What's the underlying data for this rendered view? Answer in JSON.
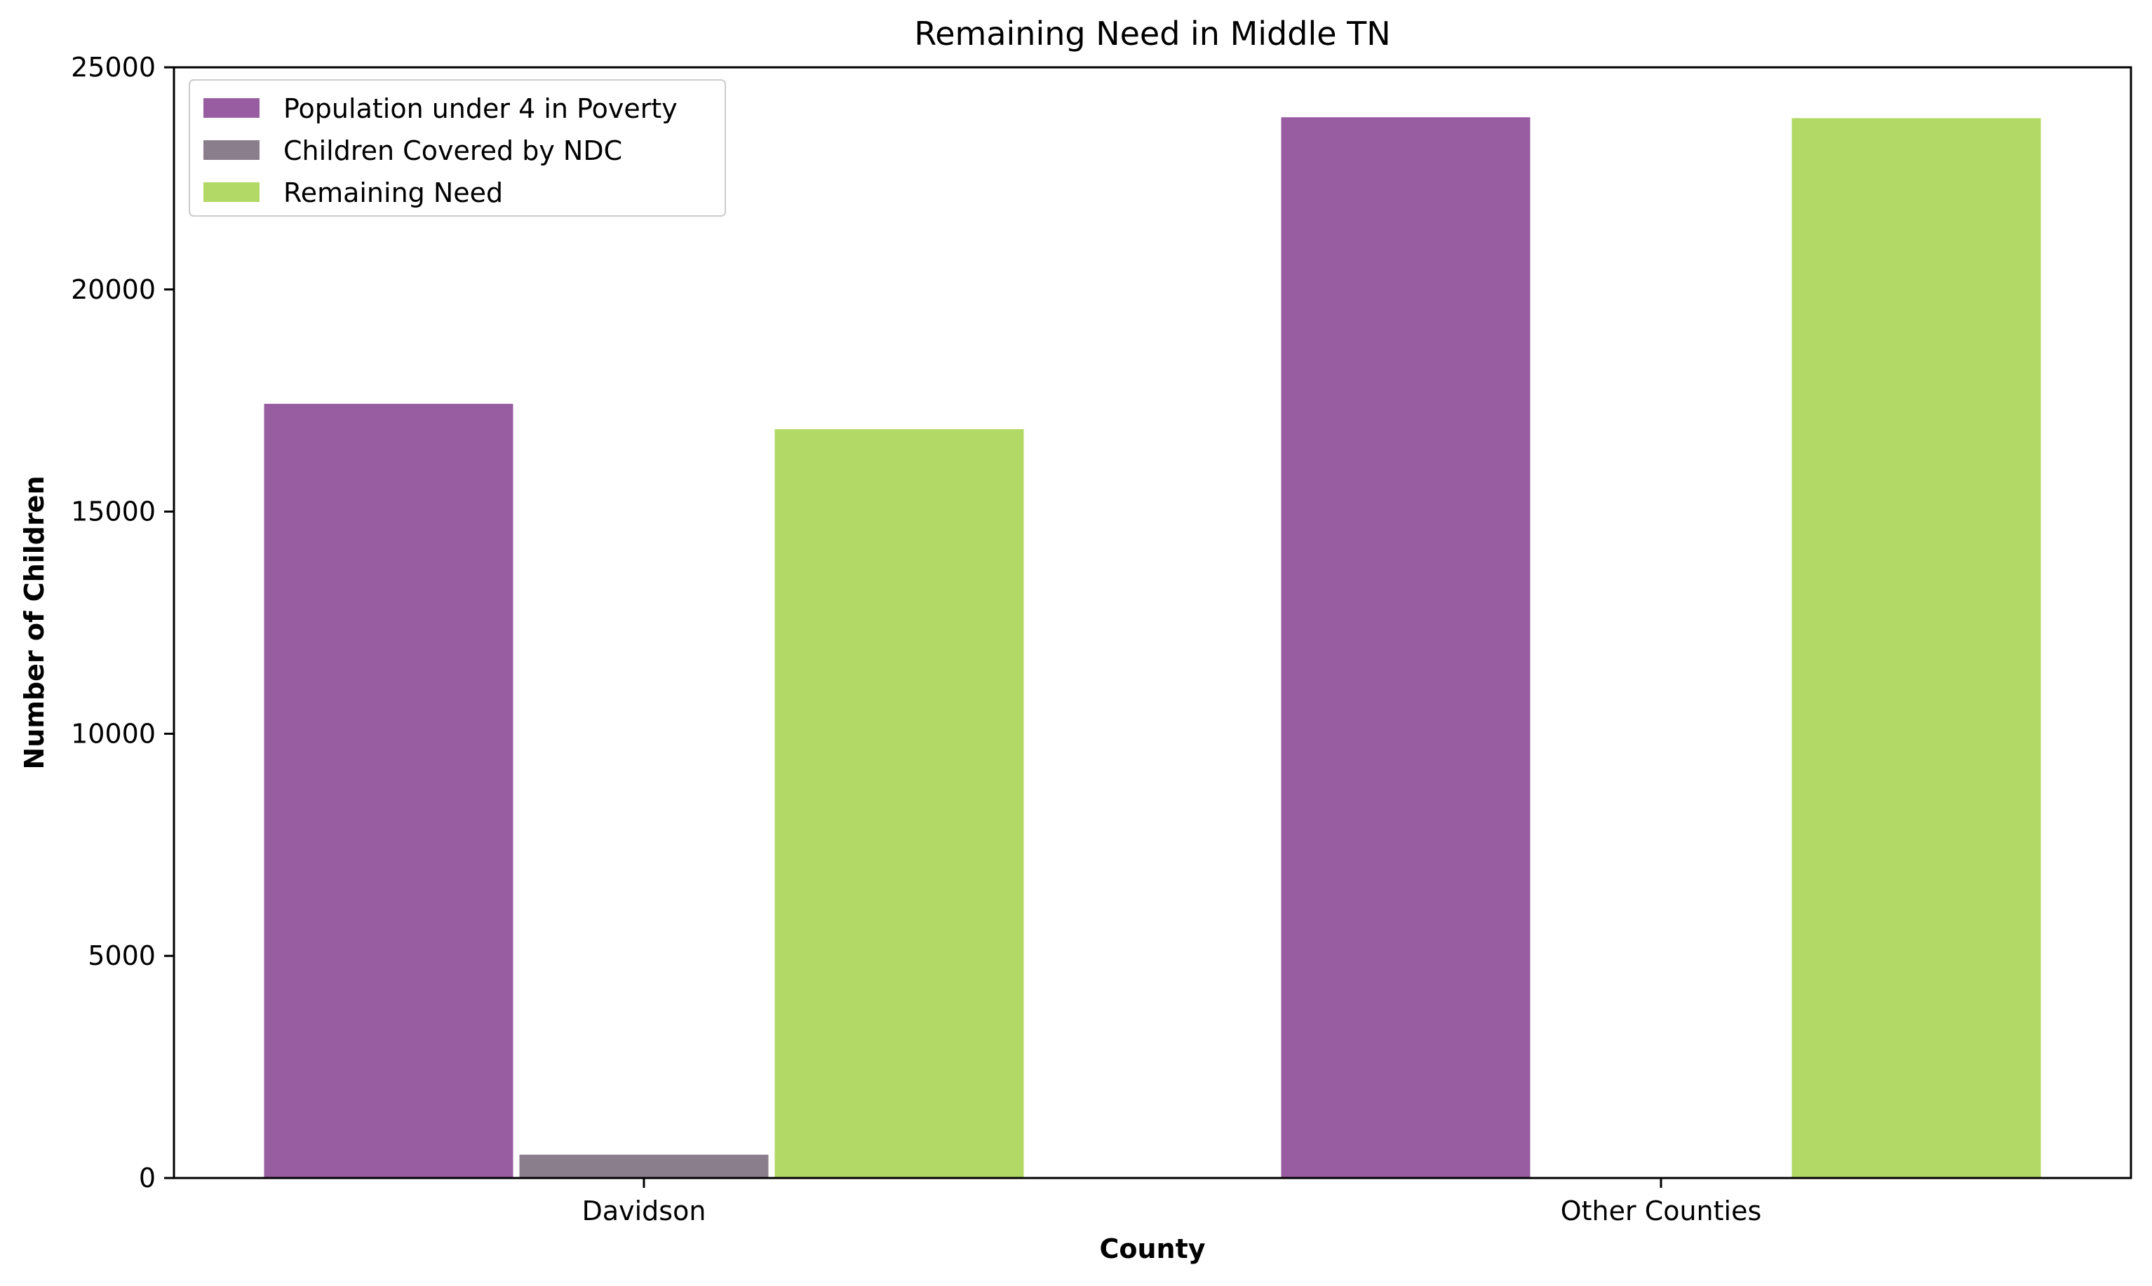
{
  "chart_data": {
    "type": "bar",
    "title": "Remaining Need in Middle TN",
    "xlabel": "County",
    "ylabel": "Number of Children",
    "categories": [
      "Davidson",
      "Other Counties"
    ],
    "series": [
      {
        "name": "Population under 4 in Poverty",
        "color": "#985da1",
        "values": [
          17450,
          23900
        ]
      },
      {
        "name": "Children Covered by NDC",
        "color": "#8b7e8c",
        "values": [
          550,
          0
        ]
      },
      {
        "name": "Remaining Need",
        "color": "#b2d965",
        "values": [
          16880,
          23880
        ]
      }
    ],
    "ylim": [
      0,
      25000
    ],
    "yticks": [
      0,
      5000,
      10000,
      15000,
      20000,
      25000
    ],
    "grid": false,
    "legend_position": "top-left"
  }
}
